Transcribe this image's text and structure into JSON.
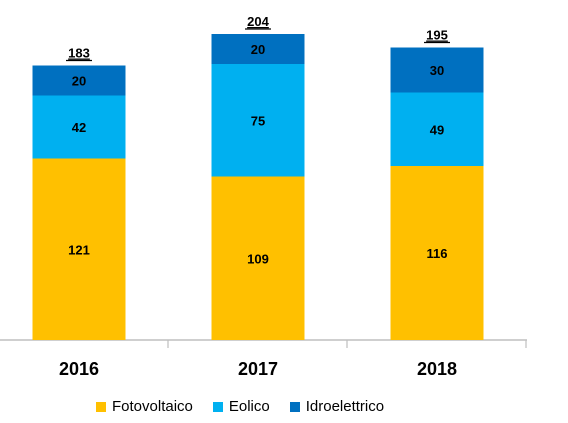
{
  "chart_data": {
    "type": "bar",
    "stacked": true,
    "categories": [
      "2016",
      "2017",
      "2018"
    ],
    "series": [
      {
        "name": "Fotovoltaico",
        "values": [
          121,
          109,
          116
        ],
        "color": "#FFC000"
      },
      {
        "name": "Eolico",
        "values": [
          42,
          75,
          49
        ],
        "color": "#00B0F0"
      },
      {
        "name": "Idroelettrico",
        "values": [
          20,
          20,
          30
        ],
        "color": "#0070C0"
      }
    ],
    "totals": [
      183,
      204,
      195
    ],
    "title": "",
    "xlabel": "",
    "ylabel": "",
    "ylim": [
      0,
      204
    ],
    "grid": false,
    "legend_position": "bottom"
  },
  "legend": {
    "items": [
      {
        "label": "Fotovoltaico",
        "color": "#FFC000"
      },
      {
        "label": "Eolico",
        "color": "#00B0F0"
      },
      {
        "label": "Idroelettrico",
        "color": "#0070C0"
      }
    ]
  }
}
